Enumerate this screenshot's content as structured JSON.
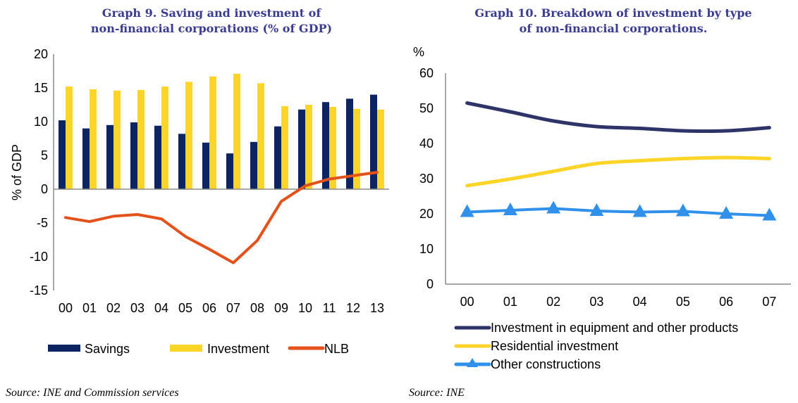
{
  "chart_data": [
    {
      "type": "bar",
      "title": "Graph 9. Saving and investment of non-financial corporations (% of GDP)",
      "title_lines": [
        "Graph 9. Saving and investment of",
        "non-financial corporations (% of GDP)"
      ],
      "xlabel": "",
      "ylabel": "% of GDP",
      "ylim": [
        -15,
        20
      ],
      "yticks": [
        20,
        15,
        10,
        5,
        0,
        -5,
        -10,
        -15
      ],
      "categories": [
        "00",
        "01",
        "02",
        "03",
        "04",
        "05",
        "06",
        "07",
        "08",
        "09",
        "10",
        "11",
        "12",
        "13"
      ],
      "series": [
        {
          "name": "Savings",
          "kind": "bar",
          "color": "#0d2462",
          "values": [
            10.2,
            9.0,
            9.5,
            9.9,
            9.4,
            8.2,
            6.9,
            5.3,
            7.0,
            9.3,
            11.8,
            12.9,
            13.4,
            14.0
          ]
        },
        {
          "name": "Investment",
          "kind": "bar",
          "color": "#fdd428",
          "values": [
            15.2,
            14.8,
            14.6,
            14.7,
            15.2,
            15.9,
            16.7,
            17.1,
            15.7,
            12.3,
            12.5,
            12.2,
            11.9,
            11.8
          ]
        },
        {
          "name": "NLB",
          "kind": "line",
          "color": "#e4521b",
          "values": [
            -4.2,
            -4.8,
            -4.0,
            -3.75,
            -4.4,
            -7.0,
            -8.9,
            -10.9,
            -7.6,
            -1.8,
            0.5,
            1.5,
            2.0,
            2.5
          ]
        }
      ],
      "grid": false,
      "legend": "bottom",
      "source": "Source: INE and Commission services"
    },
    {
      "type": "line",
      "title": "Graph 10. Breakdown of investment by type of non-financial corporations.",
      "title_lines": [
        "Graph 10. Breakdown of investment by type",
        "of non-financial corporations."
      ],
      "xlabel": "",
      "ylabel": "%",
      "ylim": [
        0,
        60
      ],
      "yticks": [
        60,
        50,
        40,
        30,
        20,
        10,
        0
      ],
      "categories": [
        "00",
        "01",
        "02",
        "03",
        "04",
        "05",
        "06",
        "07"
      ],
      "series": [
        {
          "name": "Investment in equipment and other products",
          "color": "#2e3468",
          "marker": "none",
          "values": [
            51.5,
            49.0,
            46.4,
            44.8,
            44.3,
            43.6,
            43.6,
            44.5
          ]
        },
        {
          "name": "Residential investment",
          "color": "#fdd428",
          "marker": "none",
          "values": [
            28.0,
            29.9,
            32.1,
            34.3,
            35.1,
            35.7,
            36.0,
            35.7
          ]
        },
        {
          "name": "Other constructions",
          "color": "#3090ea",
          "marker": "triangle",
          "values": [
            20.5,
            21.0,
            21.5,
            20.8,
            20.5,
            20.7,
            20.0,
            19.5
          ]
        }
      ],
      "grid": false,
      "legend": "bottom",
      "source": "Source: INE"
    }
  ]
}
